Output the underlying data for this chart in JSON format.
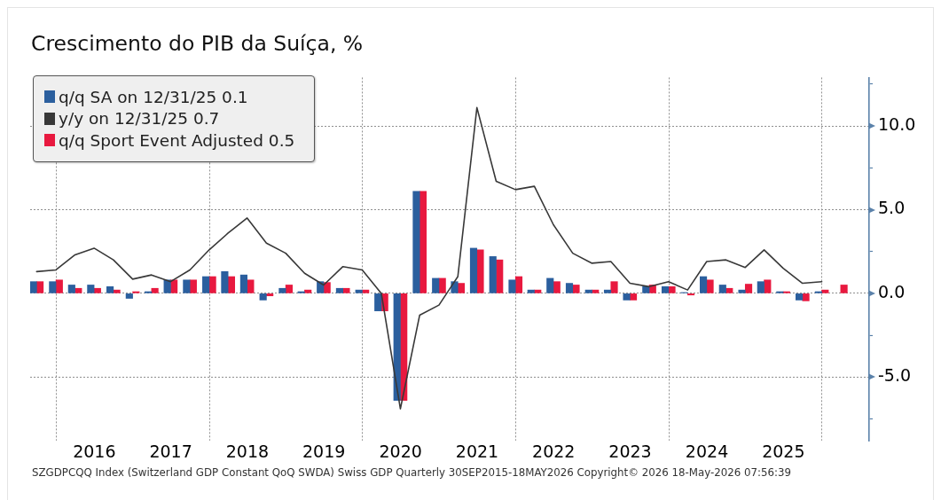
{
  "chart_data": {
    "type": "bar",
    "title": "Crescimento do PIB da Suíça, %",
    "x": [
      "2015-09-30",
      "2015-12-31",
      "2016-03-31",
      "2016-06-30",
      "2016-09-30",
      "2016-12-31",
      "2017-03-31",
      "2017-06-30",
      "2017-09-30",
      "2017-12-31",
      "2018-03-31",
      "2018-06-30",
      "2018-09-30",
      "2018-12-31",
      "2019-03-31",
      "2019-06-30",
      "2019-09-30",
      "2019-12-31",
      "2020-03-31",
      "2020-06-30",
      "2020-09-30",
      "2020-12-31",
      "2021-03-31",
      "2021-06-30",
      "2021-09-30",
      "2021-12-31",
      "2022-03-31",
      "2022-06-30",
      "2022-09-30",
      "2022-12-31",
      "2023-03-31",
      "2023-06-30",
      "2023-09-30",
      "2023-12-31",
      "2024-03-31",
      "2024-06-30",
      "2024-09-30",
      "2024-12-31",
      "2025-03-31",
      "2025-06-30",
      "2025-09-30",
      "2025-12-31",
      "2026-03-31"
    ],
    "series": [
      {
        "name": "q/q SA on 12/31/25 0.1",
        "color": "#2b5f9e",
        "values": [
          0.7,
          0.7,
          0.5,
          0.5,
          0.4,
          -0.3,
          0.1,
          0.8,
          0.8,
          1.0,
          1.3,
          1.1,
          -0.4,
          0.3,
          0.1,
          0.7,
          0.3,
          0.2,
          -1.05,
          -6.4,
          6.1,
          0.9,
          0.7,
          2.7,
          2.2,
          0.8,
          0.2,
          0.9,
          0.6,
          0.2,
          0.2,
          -0.4,
          0.4,
          0.4,
          0.05,
          1.0,
          0.5,
          0.2,
          0.7,
          0.1,
          -0.4,
          0.1,
          null
        ]
      },
      {
        "name": "y/y on 12/31/25 0.7",
        "type": "line",
        "color": "#383838",
        "values": [
          1.3,
          1.4,
          2.3,
          2.7,
          2.0,
          0.85,
          1.1,
          0.7,
          1.4,
          2.6,
          3.6,
          4.5,
          3.0,
          2.4,
          1.2,
          0.5,
          1.6,
          1.4,
          0.0,
          -6.9,
          -1.3,
          -0.7,
          1.0,
          11.1,
          6.7,
          6.2,
          6.4,
          4.1,
          2.4,
          1.8,
          1.9,
          0.6,
          0.4,
          0.7,
          0.2,
          1.9,
          2.0,
          1.55,
          2.6,
          1.5,
          0.6,
          0.7,
          null
        ]
      },
      {
        "name": "q/q Sport Event Adjusted 0.5",
        "color": "#e8193f",
        "values": [
          0.7,
          0.8,
          0.3,
          0.3,
          0.2,
          0.1,
          0.3,
          0.8,
          0.8,
          1.0,
          1.0,
          0.8,
          -0.15,
          0.5,
          0.2,
          0.65,
          0.3,
          0.2,
          -1.05,
          -6.4,
          6.1,
          0.9,
          0.6,
          2.6,
          2.0,
          1.0,
          0.2,
          0.7,
          0.5,
          0.2,
          0.7,
          -0.4,
          0.5,
          0.4,
          -0.1,
          0.8,
          0.3,
          0.55,
          0.8,
          0.1,
          -0.45,
          0.2,
          0.5
        ]
      }
    ],
    "xlim": [
      "2015-08-30",
      "2026-08-14"
    ],
    "xticks": [
      {
        "value": "2016-01-01",
        "label": null
      },
      {
        "value": "2016-07-01",
        "label": "2016"
      },
      {
        "value": "2017-07-01",
        "label": "2017"
      },
      {
        "value": "2018-01-01",
        "label": null
      },
      {
        "value": "2018-07-01",
        "label": "2018"
      },
      {
        "value": "2019-07-01",
        "label": "2019"
      },
      {
        "value": "2020-01-01",
        "label": null
      },
      {
        "value": "2020-07-01",
        "label": "2020"
      },
      {
        "value": "2021-07-01",
        "label": "2021"
      },
      {
        "value": "2022-01-01",
        "label": null
      },
      {
        "value": "2022-07-01",
        "label": "2022"
      },
      {
        "value": "2023-07-01",
        "label": "2023"
      },
      {
        "value": "2024-01-01",
        "label": null
      },
      {
        "value": "2024-07-01",
        "label": "2024"
      },
      {
        "value": "2025-07-01",
        "label": "2025"
      },
      {
        "value": "2026-01-01",
        "label": null
      }
    ],
    "ylim": [
      -8.8,
      12.9
    ],
    "yticks": [
      {
        "value": -7.5,
        "label": null
      },
      {
        "value": -5,
        "label": "-5.0"
      },
      {
        "value": -2.5,
        "label": null
      },
      {
        "value": 0,
        "label": "0.0"
      },
      {
        "value": 2.5,
        "label": null
      },
      {
        "value": 5,
        "label": "5.0"
      },
      {
        "value": 7.5,
        "label": null
      },
      {
        "value": 10,
        "label": "10.0"
      },
      {
        "value": 12.5,
        "label": null
      }
    ],
    "grid": true,
    "legend": "top left",
    "marker": "none",
    "annotations": [
      "SZGDPCQQ Index (Switzerland GDP Constant QoQ SWDA) Swiss GDP Quarterly 30SEP2015-18MAY2026 Copyright© 2026 18-May-2026 07:56:39"
    ]
  }
}
